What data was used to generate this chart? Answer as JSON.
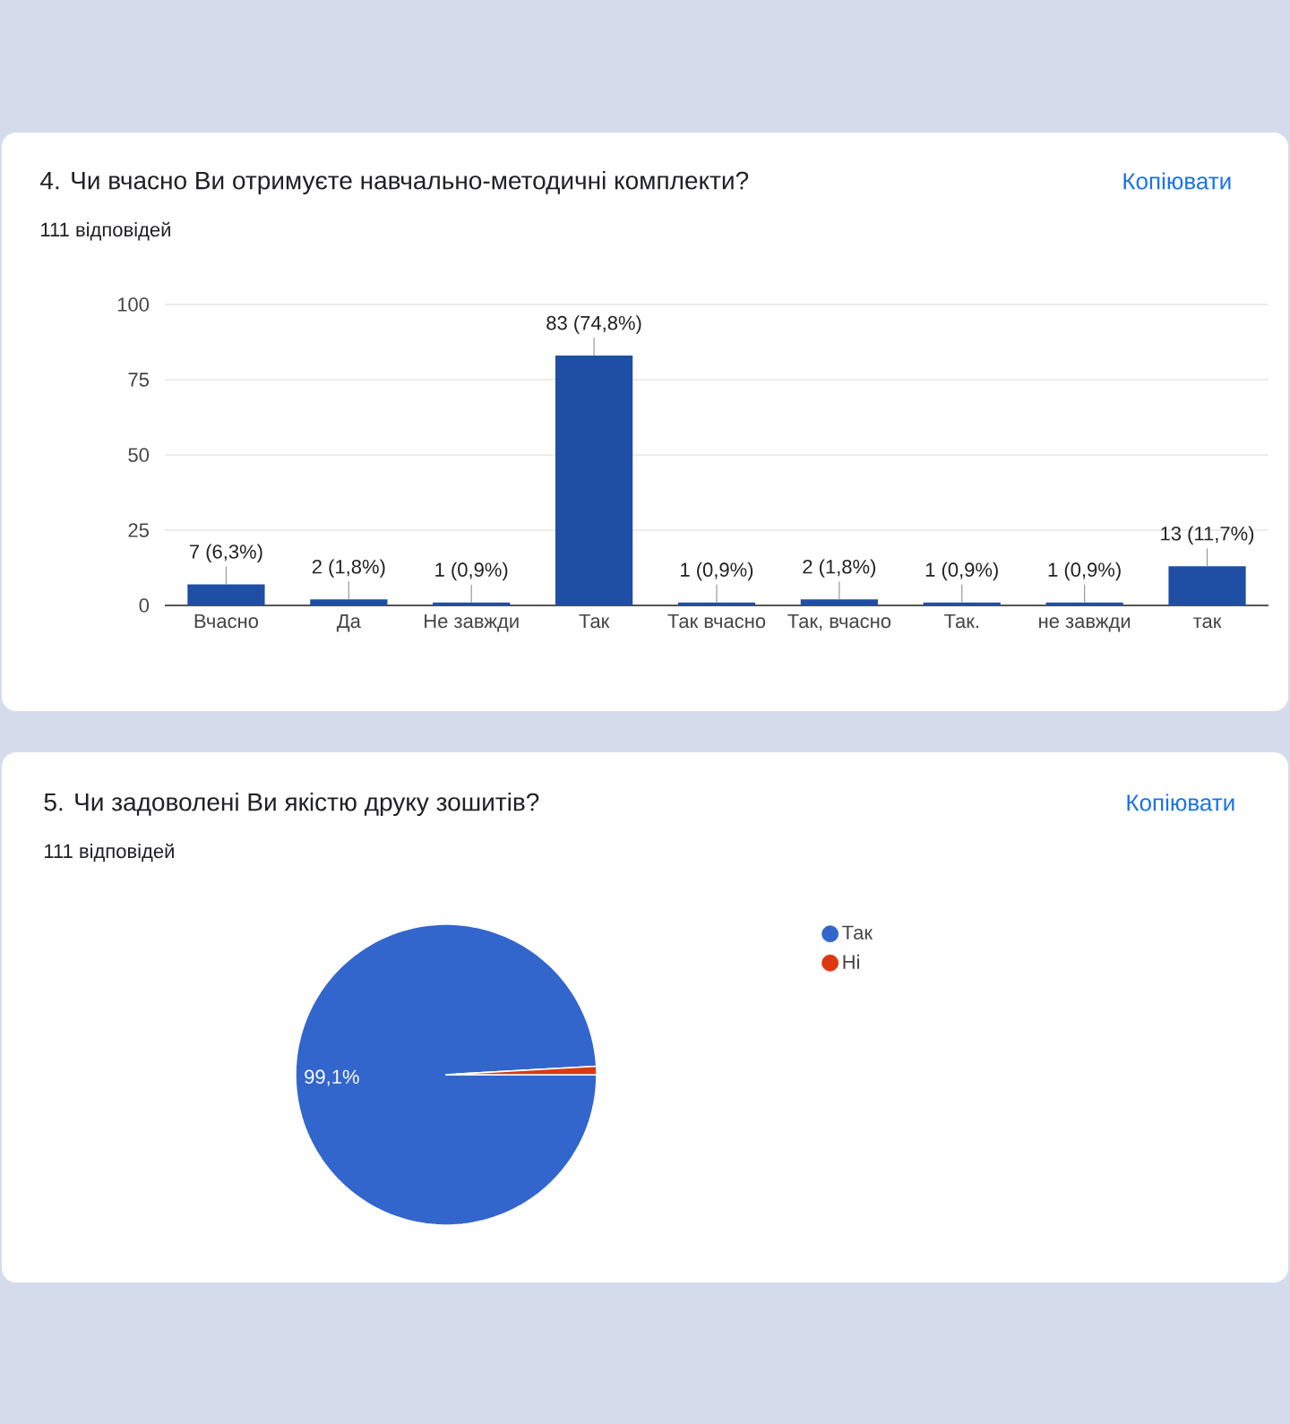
{
  "chart_data": [
    {
      "type": "bar",
      "title": "4. Чи вчасно Ви отримуєте навчально-методичні комплекти?",
      "subtitle": "111 відповідей",
      "annotations": [
        "Копіювати"
      ],
      "categories": [
        "Вчасно",
        "Да",
        "Не завжди",
        "Так",
        "Так вчасно",
        "Так, вчасно",
        "Так.",
        "не завжди",
        "так"
      ],
      "values": [
        7,
        2,
        1,
        83,
        1,
        2,
        1,
        1,
        13
      ],
      "value_labels": [
        "7 (6,3%)",
        "2 (1,8%)",
        "1 (0,9%)",
        "83 (74,8%)",
        "1 (0,9%)",
        "2 (1,8%)",
        "1 (0,9%)",
        "1 (0,9%)",
        "13 (11,7%)"
      ],
      "color": "#1f4fa5",
      "ylim": [
        0,
        100
      ],
      "yticks": [
        0,
        25,
        50,
        75,
        100
      ],
      "grid": "y"
    },
    {
      "type": "pie",
      "title": "5. Чи задоволені Ви якістю друку зошитів?",
      "subtitle": "111 відповідей",
      "annotations": [
        "Копіювати"
      ],
      "categories": [
        "Так",
        "Ні"
      ],
      "values": [
        99.1,
        0.9
      ],
      "value_labels": [
        "99,1%",
        null
      ],
      "colors": [
        "#3366cc",
        "#dc3912"
      ],
      "legend": "right"
    }
  ]
}
